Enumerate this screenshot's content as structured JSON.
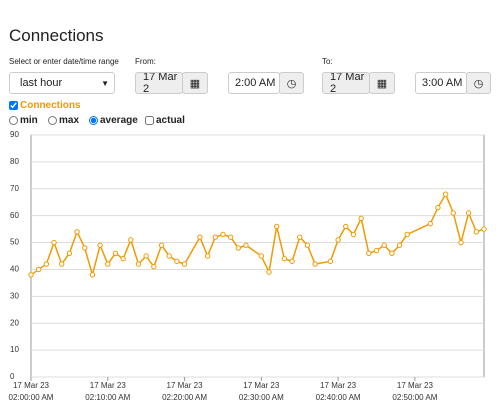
{
  "header": {
    "title": "Connections"
  },
  "controls": {
    "range_label": "Select or enter date/time range",
    "range_value": "last hour",
    "from_label": "From:",
    "from_date": "17 Mar 2",
    "from_time": "2:00 AM",
    "to_label": "To:",
    "to_date": "17 Mar 2",
    "to_time": "3:00 AM",
    "options": [
      "min",
      "max",
      "average",
      "actual"
    ]
  },
  "chart_data": {
    "type": "line",
    "x": [
      0,
      1,
      2,
      3,
      4,
      5,
      6,
      7,
      8,
      9,
      10,
      11,
      12,
      13,
      14,
      15,
      16,
      17,
      18,
      19,
      20,
      22,
      23,
      24,
      25,
      26,
      27,
      28,
      30,
      31,
      32,
      33,
      34,
      35,
      36,
      37,
      39,
      40,
      41,
      42,
      43,
      44,
      45,
      46,
      47,
      48,
      49,
      52,
      53,
      54,
      55,
      56,
      57,
      58,
      59
    ],
    "series": [
      {
        "name": "Connections",
        "color": "#f29a00",
        "values": [
          38,
          40,
          42,
          50,
          42,
          46,
          54,
          48,
          38,
          49,
          42,
          46,
          44,
          51,
          42,
          45,
          41,
          49,
          45,
          43,
          42,
          52,
          45,
          52,
          53,
          52,
          48,
          49,
          45,
          39,
          56,
          44,
          43,
          52,
          49,
          42,
          43,
          51,
          56,
          53,
          59,
          46,
          47,
          49,
          46,
          49,
          53,
          57,
          63,
          68,
          61,
          50,
          61,
          54,
          55
        ]
      }
    ],
    "xlim": [
      0,
      59
    ],
    "xticks": [
      {
        "value": 0,
        "label": "17 Mar 23\n02:00:00 AM"
      },
      {
        "value": 10,
        "label": "17 Mar 23\n02:10:00 AM"
      },
      {
        "value": 20,
        "label": "17 Mar 23\n02:20:00 AM"
      },
      {
        "value": 30,
        "label": "17 Mar 23\n02:30:00 AM"
      },
      {
        "value": 40,
        "label": "17 Mar 23\n02:40:00 AM"
      },
      {
        "value": 50,
        "label": "17 Mar 23\n02:50:00 AM"
      }
    ],
    "ylim": [
      0,
      90
    ],
    "yticks": [
      0,
      10,
      20,
      30,
      40,
      50,
      60,
      70,
      80,
      90
    ],
    "grid": true
  }
}
